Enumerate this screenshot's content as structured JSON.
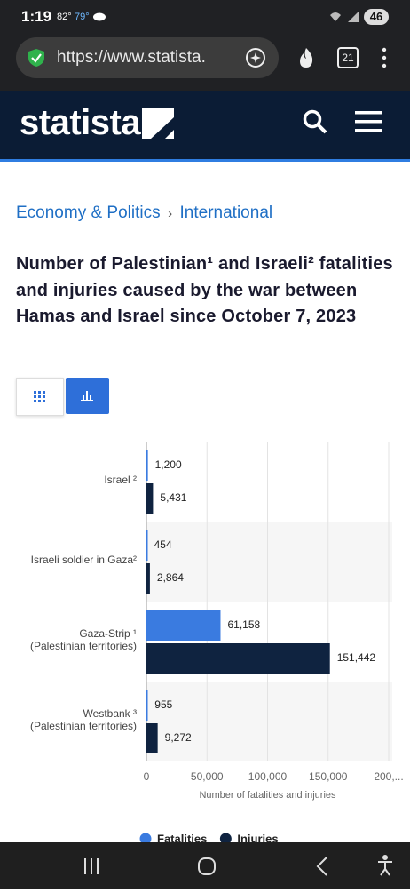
{
  "status_bar": {
    "time": "1:19",
    "temp_1": "82°",
    "temp_2": "79°",
    "battery": "46"
  },
  "browser": {
    "url": "https://www.statista.",
    "tab_count": "21"
  },
  "header": {
    "logo": "statista"
  },
  "breadcrumb": [
    "Economy & Politics",
    "International"
  ],
  "title": "Number of Palestinian¹ and Israeli² fatalities and injuries caused by the war between Hamas and Israel since October 7, 2023",
  "chart": {
    "type": "bar",
    "orientation": "horizontal",
    "categories": [
      "Israel ²",
      "Israeli soldier in Gaza²",
      "Gaza-Strip ¹\n(Palestinian territories)",
      "Westbank ³\n(Palestinian territories)"
    ],
    "series": [
      {
        "name": "Fatalities",
        "color": "#3a7be0",
        "values": [
          1200,
          454,
          61158,
          955
        ],
        "value_labels": [
          "1,200",
          "454",
          "61,158",
          "955"
        ]
      },
      {
        "name": "Injuries",
        "color": "#0f2340",
        "values": [
          5431,
          2864,
          151442,
          9272
        ],
        "value_labels": [
          "5,431",
          "2,864",
          "151,442",
          "9,272"
        ]
      }
    ],
    "xlim": [
      0,
      200000
    ],
    "xticks": [
      0,
      {
        "value": 50000,
        "label": "50,000"
      },
      {
        "value": 100000,
        "label": "100,000"
      },
      {
        "value": 150000,
        "label": "150,000"
      },
      {
        "value": 200000,
        "label": "200,..."
      }
    ],
    "xlabel": "Number of fatalities and injuries",
    "grid": true,
    "legend": "bottom"
  }
}
